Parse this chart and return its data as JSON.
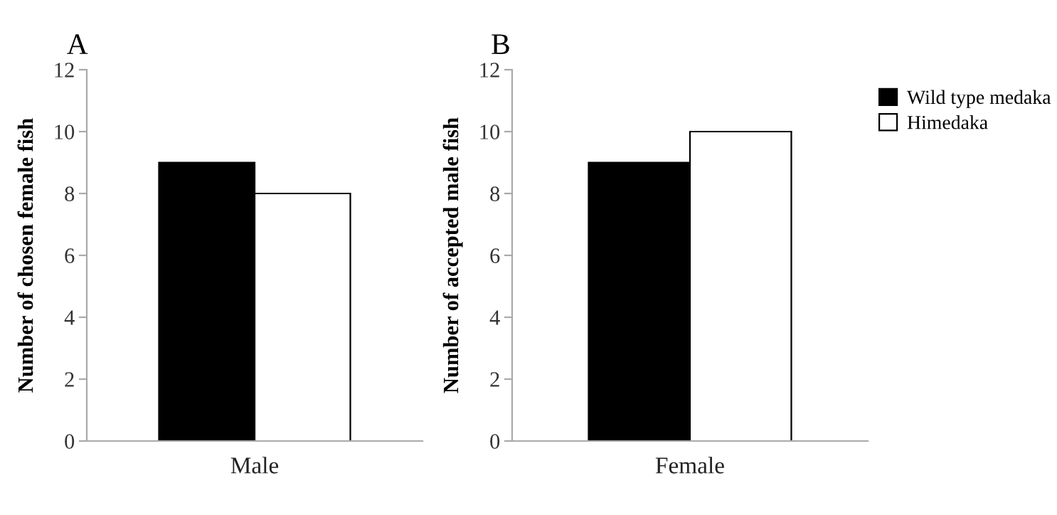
{
  "chart_data": [
    {
      "type": "bar",
      "title": "A",
      "ylabel": "Number of chosen female fish",
      "categories": [
        "Male"
      ],
      "ylim": [
        0,
        12
      ],
      "yticks": [
        0,
        2,
        4,
        6,
        8,
        10,
        12
      ],
      "grid": false,
      "legend": false,
      "series": [
        {
          "color": "#000000",
          "values": [
            9
          ]
        },
        {
          "color": "#ffffff",
          "values": [
            8
          ]
        }
      ]
    },
    {
      "type": "bar",
      "title": "B",
      "ylabel": "Number of accepted male fish",
      "categories": [
        "Female"
      ],
      "ylim": [
        0,
        12
      ],
      "yticks": [
        0,
        2,
        4,
        6,
        8,
        10,
        12
      ],
      "grid": false,
      "legend": "top right",
      "series": [
        {
          "name": "Wild type medaka",
          "color": "#000000",
          "values": [
            9
          ]
        },
        {
          "name": "Himedaka",
          "color": "#ffffff",
          "values": [
            10
          ]
        }
      ]
    }
  ]
}
